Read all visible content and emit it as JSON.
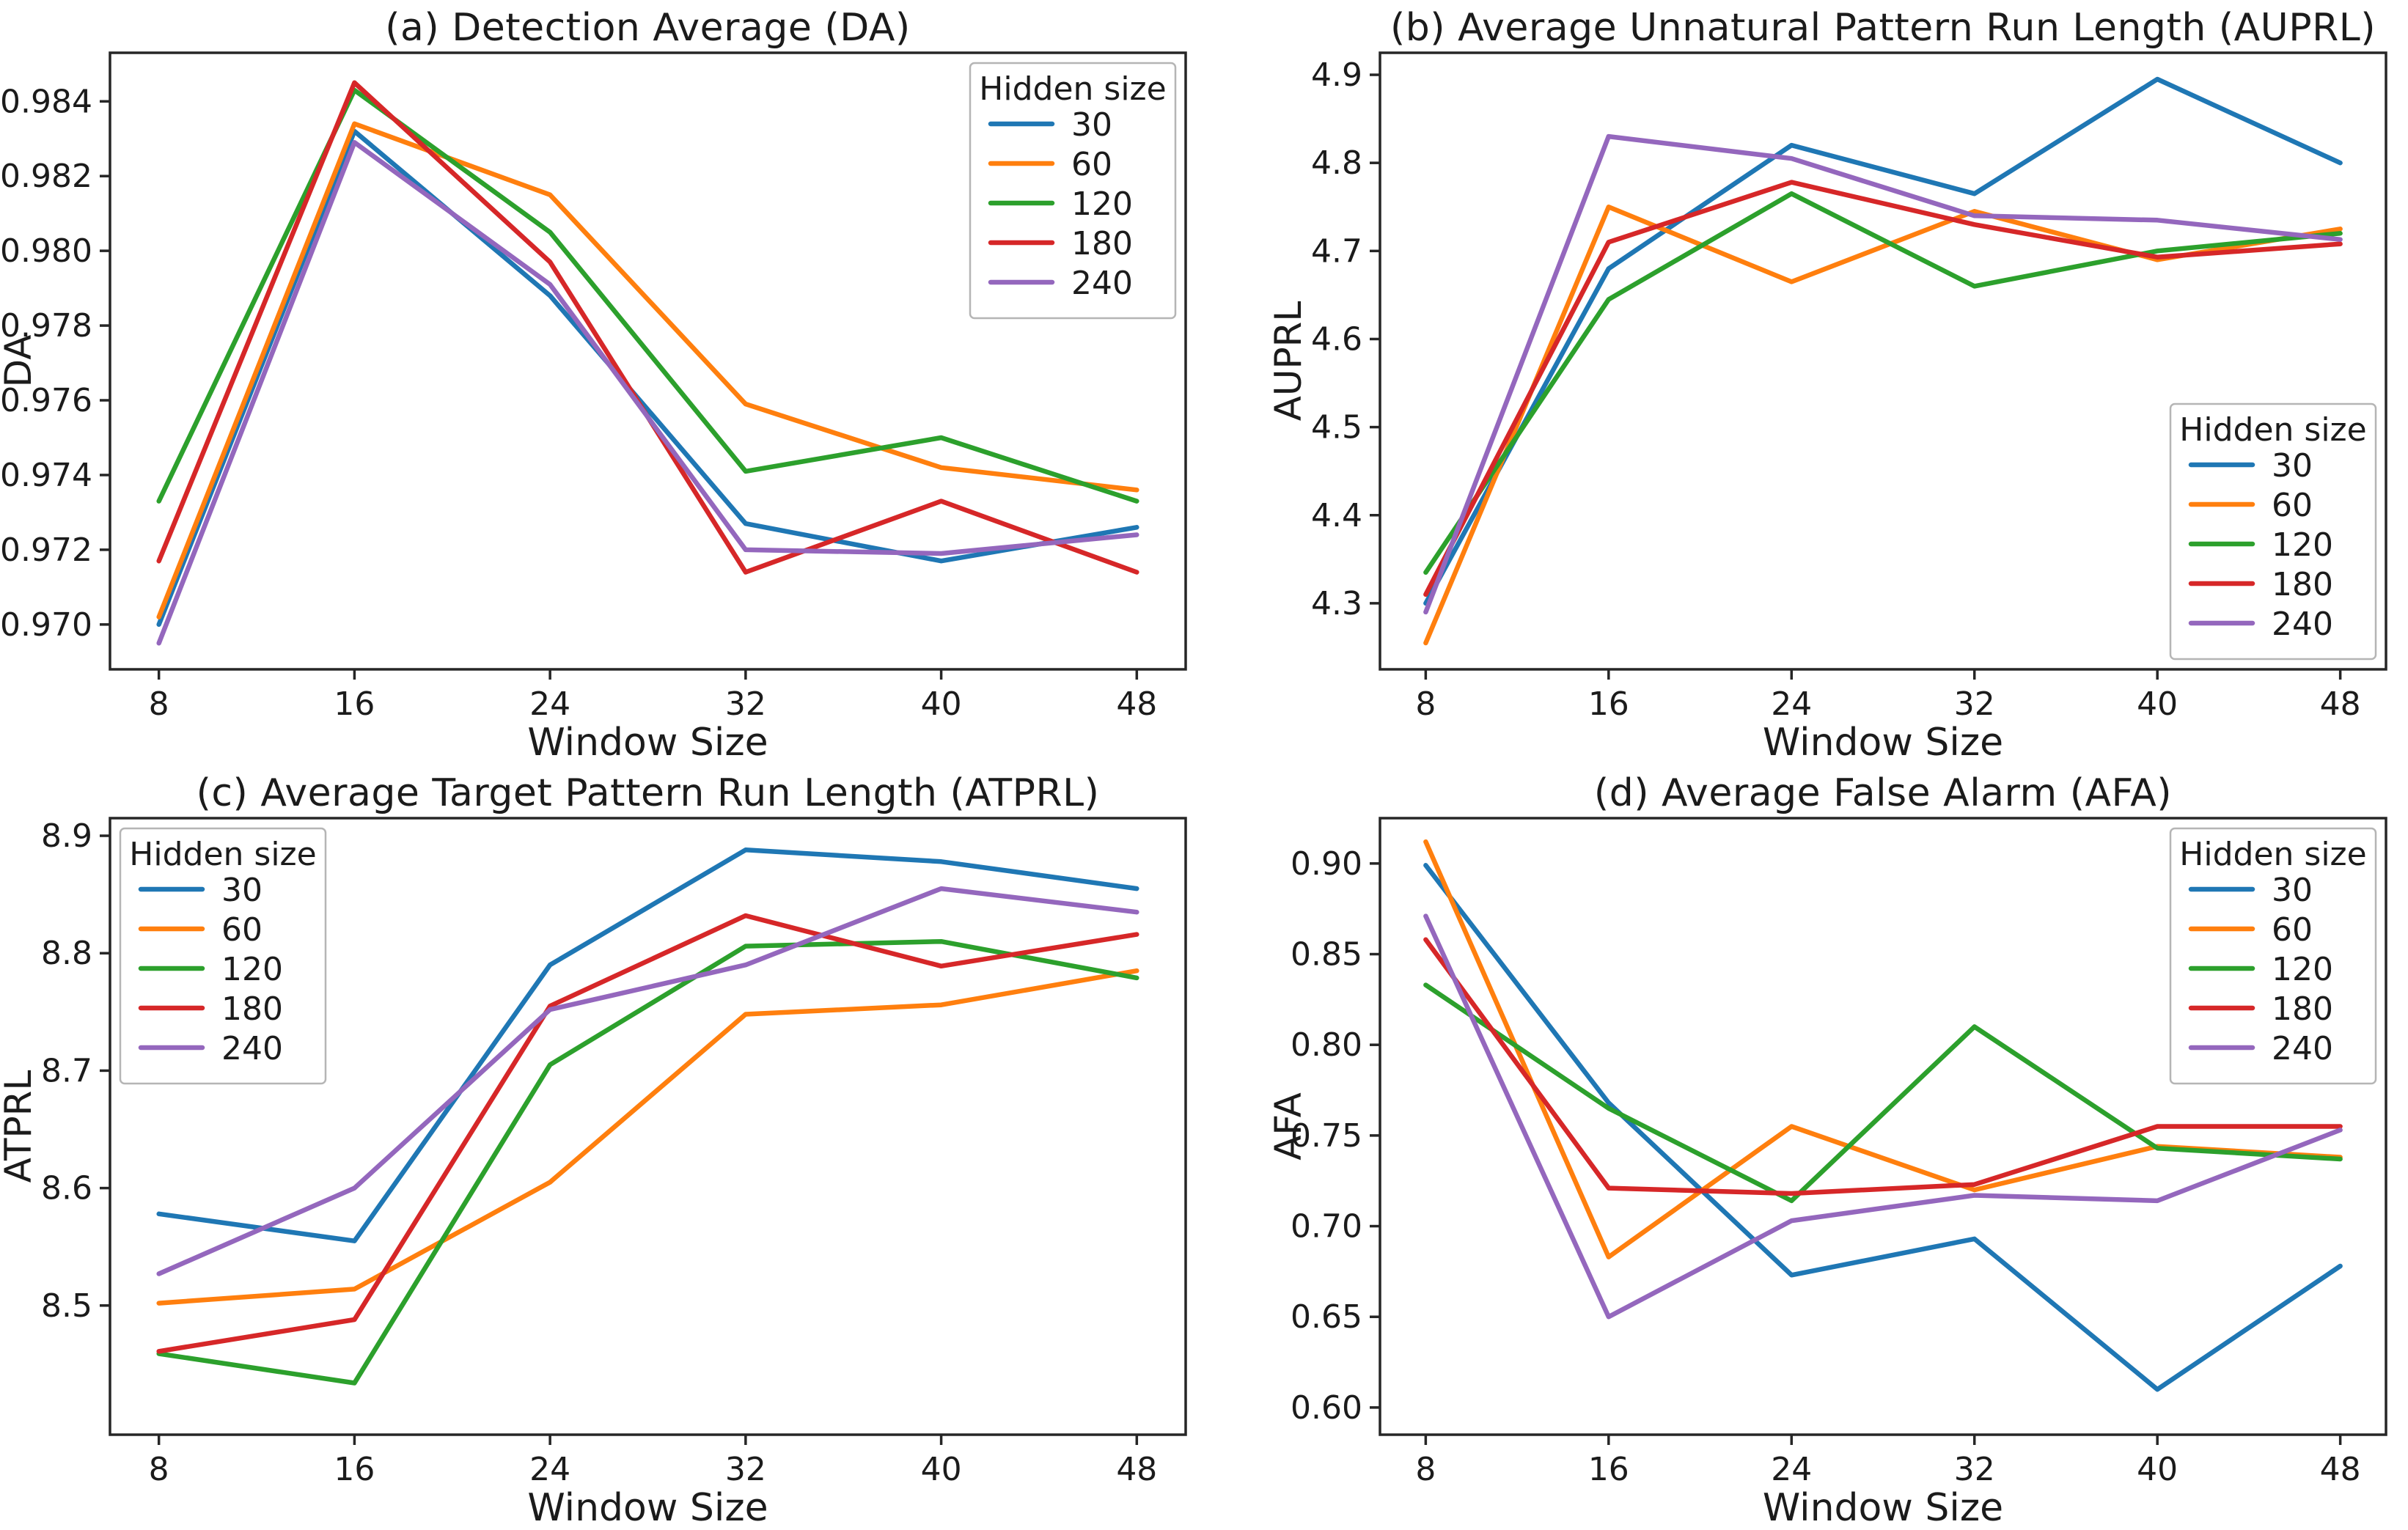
{
  "figure": {
    "background": "#ffffff",
    "text_color": "#1b1b1b",
    "spine_color": "#262626",
    "grid": "off",
    "legend_title": "Hidden size",
    "series_names": [
      "30",
      "60",
      "120",
      "180",
      "240"
    ],
    "series_colors": [
      "#1f77b4",
      "#ff7f0e",
      "#2ca02c",
      "#d62728",
      "#9467bd"
    ]
  },
  "chart_data": [
    {
      "type": "line",
      "title": "(a) Detection Average (DA)",
      "ylabel": "DA",
      "xlabel": "Window Size",
      "x": [
        8,
        16,
        24,
        32,
        40,
        48
      ],
      "x_tick_labels": [
        "8",
        "16",
        "24",
        "32",
        "40",
        "48"
      ],
      "ylim": [
        0.9688,
        0.9853
      ],
      "yticks": [
        0.97,
        0.972,
        0.974,
        0.976,
        0.978,
        0.98,
        0.982,
        0.984
      ],
      "ytick_labels": [
        "0.970",
        "0.972",
        "0.974",
        "0.976",
        "0.978",
        "0.980",
        "0.982",
        "0.984"
      ],
      "legend": {
        "title": "Hidden size",
        "position": "top-right"
      },
      "series": [
        {
          "name": "30",
          "color": "#1f77b4",
          "values": [
            0.97,
            0.9832,
            0.9788,
            0.9727,
            0.9717,
            0.9726
          ]
        },
        {
          "name": "60",
          "color": "#ff7f0e",
          "values": [
            0.9702,
            0.9834,
            0.9815,
            0.9759,
            0.9742,
            0.9736
          ]
        },
        {
          "name": "120",
          "color": "#2ca02c",
          "values": [
            0.9733,
            0.9843,
            0.9805,
            0.9741,
            0.975,
            0.9733
          ]
        },
        {
          "name": "180",
          "color": "#d62728",
          "values": [
            0.9717,
            0.9845,
            0.9797,
            0.9714,
            0.9733,
            0.9714
          ]
        },
        {
          "name": "240",
          "color": "#9467bd",
          "values": [
            0.9695,
            0.9829,
            0.9791,
            0.972,
            0.9719,
            0.9724
          ]
        }
      ]
    },
    {
      "type": "line",
      "title": "(b) Average Unnatural Pattern Run Length (AUPRL)",
      "ylabel": "AUPRL",
      "xlabel": "Window Size",
      "x": [
        8,
        16,
        24,
        32,
        40,
        48
      ],
      "x_tick_labels": [
        "8",
        "16",
        "24",
        "32",
        "40",
        "48"
      ],
      "ylim": [
        4.225,
        4.925
      ],
      "yticks": [
        4.3,
        4.4,
        4.5,
        4.6,
        4.7,
        4.8,
        4.9
      ],
      "ytick_labels": [
        "4.3",
        "4.4",
        "4.5",
        "4.6",
        "4.7",
        "4.8",
        "4.9"
      ],
      "legend": {
        "title": "Hidden size",
        "position": "bottom-right"
      },
      "series": [
        {
          "name": "30",
          "color": "#1f77b4",
          "values": [
            4.3,
            4.68,
            4.82,
            4.765,
            4.895,
            4.8
          ]
        },
        {
          "name": "60",
          "color": "#ff7f0e",
          "values": [
            4.255,
            4.75,
            4.665,
            4.745,
            4.69,
            4.725
          ]
        },
        {
          "name": "120",
          "color": "#2ca02c",
          "values": [
            4.335,
            4.645,
            4.765,
            4.66,
            4.7,
            4.72
          ]
        },
        {
          "name": "180",
          "color": "#d62728",
          "values": [
            4.31,
            4.71,
            4.778,
            4.73,
            4.693,
            4.708
          ]
        },
        {
          "name": "240",
          "color": "#9467bd",
          "values": [
            4.29,
            4.83,
            4.805,
            4.74,
            4.735,
            4.713
          ]
        }
      ]
    },
    {
      "type": "line",
      "title": "(c) Average Target Pattern Run Length (ATPRL)",
      "ylabel": "ATPRL",
      "xlabel": "Window Size",
      "x": [
        8,
        16,
        24,
        32,
        40,
        48
      ],
      "x_tick_labels": [
        "8",
        "16",
        "24",
        "32",
        "40",
        "48"
      ],
      "ylim": [
        8.39,
        8.915
      ],
      "yticks": [
        8.5,
        8.6,
        8.7,
        8.8,
        8.9
      ],
      "ytick_labels": [
        "8.5",
        "8.6",
        "8.7",
        "8.8",
        "8.9"
      ],
      "legend": {
        "title": "Hidden size",
        "position": "top-left"
      },
      "series": [
        {
          "name": "30",
          "color": "#1f77b4",
          "values": [
            8.578,
            8.555,
            8.79,
            8.888,
            8.878,
            8.855
          ]
        },
        {
          "name": "60",
          "color": "#ff7f0e",
          "values": [
            8.502,
            8.514,
            8.605,
            8.748,
            8.756,
            8.785
          ]
        },
        {
          "name": "120",
          "color": "#2ca02c",
          "values": [
            8.459,
            8.434,
            8.705,
            8.806,
            8.81,
            8.779
          ]
        },
        {
          "name": "180",
          "color": "#d62728",
          "values": [
            8.461,
            8.488,
            8.755,
            8.832,
            8.789,
            8.816
          ]
        },
        {
          "name": "240",
          "color": "#9467bd",
          "values": [
            8.527,
            8.6,
            8.752,
            8.79,
            8.855,
            8.835
          ]
        }
      ]
    },
    {
      "type": "line",
      "title": "(d) Average False Alarm (AFA)",
      "ylabel": "AFA",
      "xlabel": "Window Size",
      "x": [
        8,
        16,
        24,
        32,
        40,
        48
      ],
      "x_tick_labels": [
        "8",
        "16",
        "24",
        "32",
        "40",
        "48"
      ],
      "ylim": [
        0.585,
        0.925
      ],
      "yticks": [
        0.6,
        0.65,
        0.7,
        0.75,
        0.8,
        0.85,
        0.9
      ],
      "ytick_labels": [
        "0.60",
        "0.65",
        "0.70",
        "0.75",
        "0.80",
        "0.85",
        "0.90"
      ],
      "legend": {
        "title": "Hidden size",
        "position": "top-right"
      },
      "series": [
        {
          "name": "30",
          "color": "#1f77b4",
          "values": [
            0.899,
            0.768,
            0.673,
            0.693,
            0.61,
            0.678
          ]
        },
        {
          "name": "60",
          "color": "#ff7f0e",
          "values": [
            0.912,
            0.683,
            0.755,
            0.72,
            0.744,
            0.738
          ]
        },
        {
          "name": "120",
          "color": "#2ca02c",
          "values": [
            0.833,
            0.765,
            0.714,
            0.81,
            0.743,
            0.737
          ]
        },
        {
          "name": "180",
          "color": "#d62728",
          "values": [
            0.858,
            0.721,
            0.718,
            0.723,
            0.755,
            0.755
          ]
        },
        {
          "name": "240",
          "color": "#9467bd",
          "values": [
            0.871,
            0.65,
            0.703,
            0.717,
            0.714,
            0.753
          ]
        }
      ]
    }
  ]
}
